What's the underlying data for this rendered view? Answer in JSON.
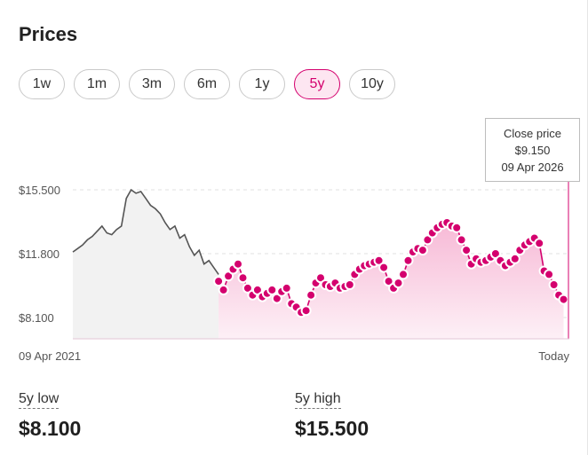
{
  "header": {
    "title": "Prices"
  },
  "ranges": {
    "options": [
      "1w",
      "1m",
      "3m",
      "6m",
      "1y",
      "5y",
      "10y"
    ],
    "selected": "5y"
  },
  "tooltip": {
    "label": "Close price",
    "value": "$9.150",
    "date": "09 Apr 2026"
  },
  "stats": {
    "low": {
      "label": "5y low",
      "value": "$8.100"
    },
    "high": {
      "label": "5y high",
      "value": "$15.500"
    }
  },
  "colors": {
    "accent": "#d4006e",
    "accent_fill": "#f7b9d6",
    "past_line": "#555555",
    "past_fill": "#f2f2f2"
  },
  "chart_data": {
    "type": "line",
    "x_start_label": "09 Apr 2021",
    "x_end_label": "Today",
    "y_ticks": [
      15.5,
      11.8,
      8.1
    ],
    "y_tick_labels": [
      "$15.500",
      "$11.800",
      "$8.100"
    ],
    "ylim": [
      7.1,
      16.0
    ],
    "grid": true,
    "series": [
      {
        "values": [
          11.9,
          12.1,
          12.3,
          12.6,
          12.8,
          13.1,
          13.4,
          13.0,
          12.9,
          13.2,
          13.4,
          15.0,
          15.5,
          15.3,
          15.4,
          15.0,
          14.6,
          14.4,
          14.1,
          13.6,
          13.2,
          13.4,
          12.7,
          12.9,
          12.2,
          11.7,
          12.0,
          11.2,
          11.4,
          11.0,
          10.6
        ]
      },
      {
        "values": [
          10.2,
          9.7,
          10.5,
          10.9,
          11.2,
          10.4,
          9.8,
          9.4,
          9.7,
          9.3,
          9.5,
          9.7,
          9.2,
          9.6,
          9.8,
          8.9,
          8.7,
          8.4,
          8.5,
          9.4,
          10.1,
          10.4,
          10.0,
          9.9,
          10.1,
          9.8,
          9.9,
          10.0,
          10.6,
          10.9,
          11.1,
          11.2,
          11.3,
          11.4,
          11.0,
          10.2,
          9.8,
          10.1,
          10.6,
          11.4,
          11.9,
          12.1,
          12.0,
          12.6,
          13.0,
          13.3,
          13.5,
          13.6,
          13.4,
          13.3,
          12.6,
          12.0,
          11.2,
          11.5,
          11.3,
          11.4,
          11.6,
          11.8,
          11.4,
          11.1,
          11.3,
          11.5,
          12.0,
          12.3,
          12.5,
          12.7,
          12.4,
          10.8,
          10.6,
          10.0,
          9.4,
          9.15
        ]
      }
    ]
  }
}
